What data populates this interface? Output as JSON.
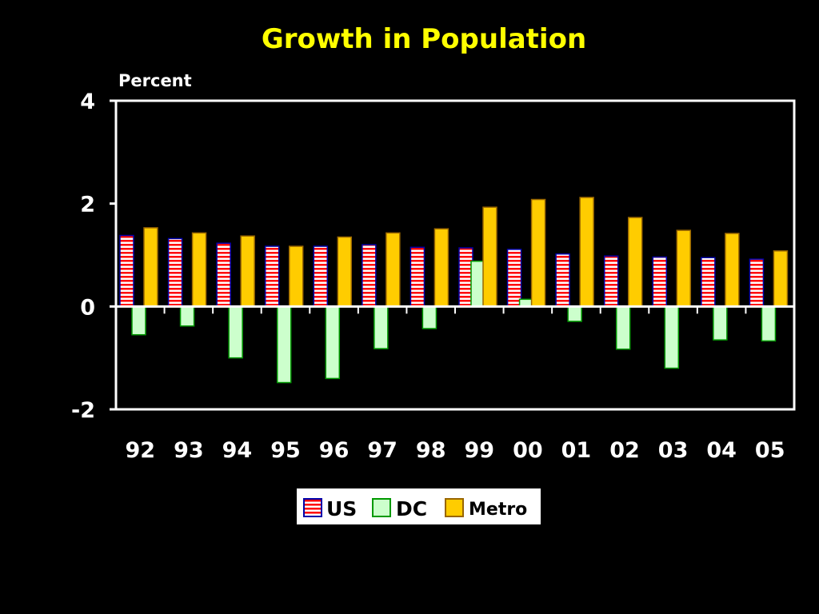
{
  "chart_data": {
    "type": "bar",
    "title": "Growth in Population",
    "ylabel": "Percent",
    "xlabel": "",
    "ylim": [
      -2,
      4
    ],
    "yticks": [
      -2,
      0,
      2,
      4
    ],
    "grid": false,
    "legend_position": "bottom",
    "categories": [
      "92",
      "93",
      "94",
      "95",
      "96",
      "97",
      "98",
      "99",
      "00",
      "01",
      "02",
      "03",
      "04",
      "05"
    ],
    "series": [
      {
        "name": "US",
        "color": "#ff0000",
        "pattern": "red-white-stripes",
        "values": [
          1.38,
          1.32,
          1.23,
          1.17,
          1.17,
          1.2,
          1.15,
          1.14,
          1.11,
          1.02,
          0.98,
          0.96,
          0.95,
          0.92
        ]
      },
      {
        "name": "DC",
        "color": "#ccffcc",
        "pattern": "solid",
        "values": [
          -0.55,
          -0.38,
          -1.0,
          -1.48,
          -1.4,
          -0.82,
          -0.43,
          0.88,
          0.14,
          -0.29,
          -0.83,
          -1.2,
          -0.65,
          -0.67
        ]
      },
      {
        "name": "Metro",
        "color": "#ffcc00",
        "pattern": "solid",
        "values": [
          1.53,
          1.43,
          1.37,
          1.17,
          1.35,
          1.43,
          1.51,
          1.93,
          2.08,
          2.12,
          1.73,
          1.48,
          1.42,
          1.08
        ]
      }
    ]
  }
}
